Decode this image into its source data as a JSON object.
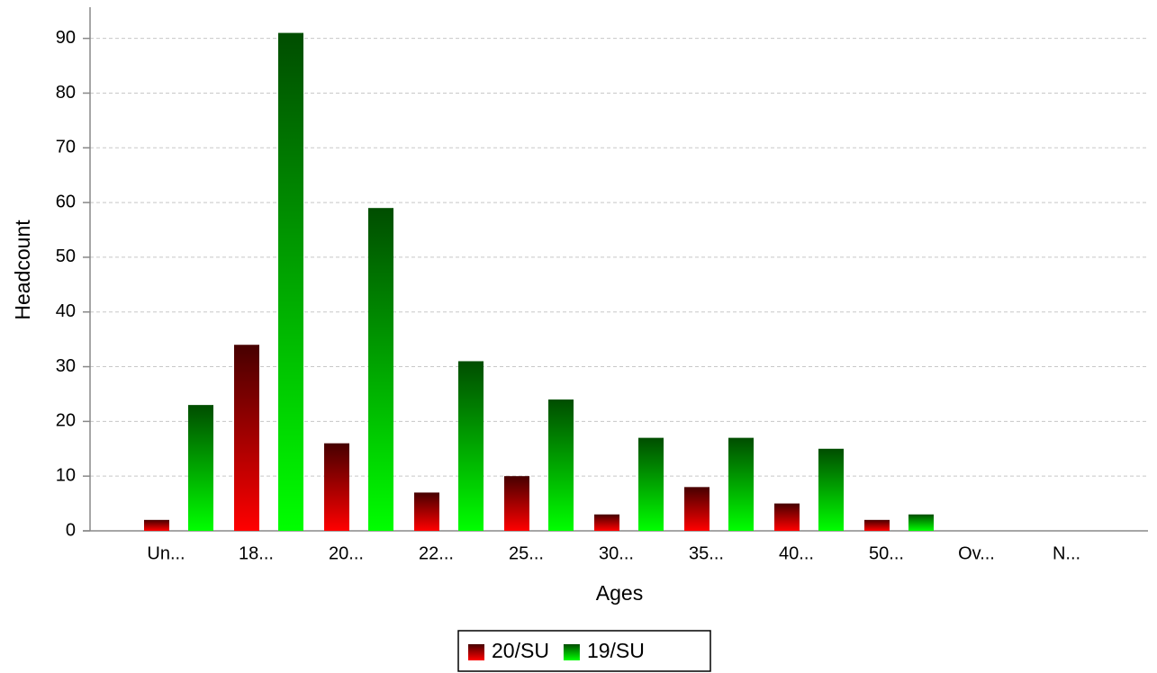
{
  "chart_data": {
    "type": "bar",
    "x_label": "Ages",
    "y_label": "Headcount",
    "categories": [
      "Un...",
      "18...",
      "20...",
      "22...",
      "25...",
      "30...",
      "35...",
      "40...",
      "50...",
      "Ov...",
      "N..."
    ],
    "series": [
      {
        "name": "20/SU",
        "color": "#ff0000",
        "values": [
          2,
          34,
          16,
          7,
          10,
          3,
          8,
          5,
          2,
          0,
          0
        ]
      },
      {
        "name": "19/SU",
        "color": "#00ff00",
        "values": [
          23,
          91,
          59,
          31,
          24,
          17,
          17,
          15,
          3,
          0,
          0
        ]
      }
    ],
    "ylim": [
      0,
      95.7
    ],
    "yticks": [
      0,
      10,
      20,
      30,
      40,
      50,
      60,
      70,
      80,
      90
    ],
    "grid": true,
    "legend": "bottom"
  }
}
